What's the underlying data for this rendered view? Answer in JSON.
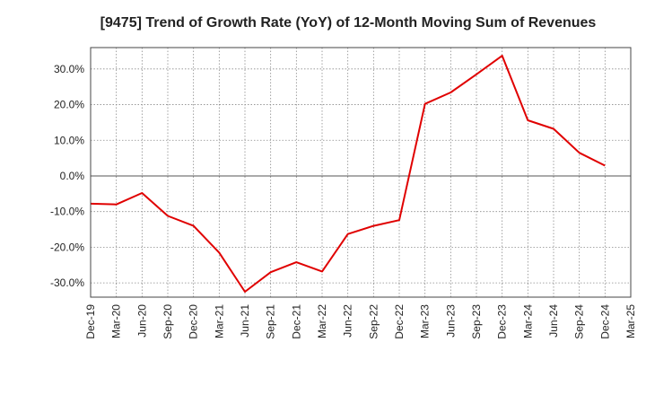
{
  "chart_data": {
    "type": "line",
    "title": "[9475]  Trend of Growth Rate (YoY) of 12-Month Moving Sum of Revenues",
    "xlabel": "",
    "ylabel": "",
    "x_tick_labels": [
      "Dec-19",
      "Mar-20",
      "Jun-20",
      "Sep-20",
      "Dec-20",
      "Mar-21",
      "Jun-21",
      "Sep-21",
      "Dec-21",
      "Mar-22",
      "Jun-22",
      "Sep-22",
      "Dec-22",
      "Mar-23",
      "Jun-23",
      "Sep-23",
      "Dec-23",
      "Mar-24",
      "Jun-24",
      "Sep-24",
      "Dec-24",
      "Mar-25"
    ],
    "y_ticks": [
      30,
      20,
      10,
      0,
      -10,
      -20,
      -30
    ],
    "y_tick_labels": [
      "30.0%",
      "20.0%",
      "10.0%",
      "0.0%",
      "-10.0%",
      "-20.0%",
      "-30.0%"
    ],
    "ylim": [
      -34,
      36
    ],
    "y_unit": "%",
    "grid": true,
    "line_color": "#e00000",
    "series": [
      {
        "x": [
          "Dec-19",
          "Mar-20",
          "Jun-20",
          "Sep-20",
          "Dec-20",
          "Mar-21",
          "Jun-21",
          "Sep-21",
          "Dec-21",
          "Mar-22",
          "Jun-22",
          "Sep-22",
          "Dec-22",
          "Mar-23",
          "Jun-23",
          "Sep-23",
          "Dec-23",
          "Mar-24",
          "Jun-24",
          "Sep-24",
          "Dec-24"
        ],
        "values": [
          -7.8,
          -8.0,
          -4.8,
          -11.2,
          -14.0,
          -21.5,
          -32.5,
          -27.0,
          -24.2,
          -26.8,
          -16.3,
          -14.0,
          -12.4,
          20.2,
          23.4,
          28.5,
          33.7,
          15.6,
          13.2,
          6.5,
          2.9
        ]
      }
    ]
  }
}
